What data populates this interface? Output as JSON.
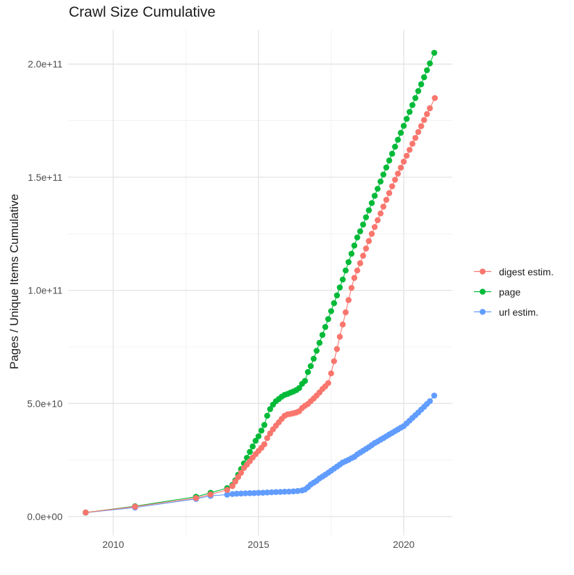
{
  "title": "Crawl Size Cumulative",
  "y_axis": {
    "title": "Pages / Unique Items Cumulative",
    "tick_labels": [
      "0.0e+00",
      "5.0e+10",
      "1.0e+11",
      "1.5e+11",
      "2.0e+11"
    ],
    "tick_values_e9": [
      0,
      50,
      100,
      150,
      200
    ]
  },
  "x_axis": {
    "tick_labels": [
      "2010",
      "2015",
      "2020"
    ],
    "tick_values": [
      2010,
      2015,
      2020
    ]
  },
  "legend": {
    "items": [
      {
        "label": "digest estim.",
        "color": "#F8766D"
      },
      {
        "label": "page",
        "color": "#00BA38"
      },
      {
        "label": "url estim.",
        "color": "#619CFF"
      }
    ]
  },
  "colors": {
    "digest": "#F8766D",
    "page": "#00BA38",
    "url": "#619CFF",
    "grid_major": "#e3e3e3",
    "grid_minor": "#f1f1f1",
    "tick_text": "#4d4d4d"
  },
  "chart_data": {
    "type": "scatter",
    "title": "Crawl Size Cumulative",
    "xlabel": "",
    "ylabel": "Pages / Unique Items Cumulative",
    "units": "y values in billions (1e9) of pages / unique items",
    "xlim": [
      2008.44,
      2021.68
    ],
    "ylim_e9": [
      -8,
      215
    ],
    "grid": "major+minor",
    "legend_position": "right",
    "marker_radius_px": 4.3,
    "series": [
      {
        "name": "url estim.",
        "color": "#619CFF",
        "points": [
          [
            2009.05,
            1.75
          ],
          [
            2010.75,
            4.0
          ],
          [
            2012.85,
            7.8
          ],
          [
            2013.35,
            9.2
          ],
          [
            2013.92,
            9.7
          ],
          [
            2014.1,
            10.0
          ],
          [
            2014.25,
            10.1
          ],
          [
            2014.4,
            10.2
          ],
          [
            2014.55,
            10.3
          ],
          [
            2014.7,
            10.35
          ],
          [
            2014.85,
            10.4
          ],
          [
            2015.0,
            10.5
          ],
          [
            2015.15,
            10.55
          ],
          [
            2015.3,
            10.65
          ],
          [
            2015.45,
            10.75
          ],
          [
            2015.6,
            10.85
          ],
          [
            2015.75,
            10.9
          ],
          [
            2015.9,
            11.0
          ],
          [
            2016.05,
            11.05
          ],
          [
            2016.2,
            11.15
          ],
          [
            2016.35,
            11.3
          ],
          [
            2016.5,
            11.6
          ],
          [
            2016.6,
            12.0
          ],
          [
            2016.7,
            13.0
          ],
          [
            2016.8,
            14.2
          ],
          [
            2016.9,
            15.0
          ],
          [
            2017.0,
            15.8
          ],
          [
            2017.1,
            16.9
          ],
          [
            2017.2,
            17.7
          ],
          [
            2017.3,
            18.5
          ],
          [
            2017.4,
            19.4
          ],
          [
            2017.5,
            20.3
          ],
          [
            2017.6,
            21.2
          ],
          [
            2017.7,
            22.1
          ],
          [
            2017.8,
            23.0
          ],
          [
            2017.9,
            23.9
          ],
          [
            2018.0,
            24.5
          ],
          [
            2018.1,
            25.1
          ],
          [
            2018.2,
            25.8
          ],
          [
            2018.3,
            26.4
          ],
          [
            2018.4,
            27.5
          ],
          [
            2018.5,
            28.3
          ],
          [
            2018.6,
            29.1
          ],
          [
            2018.7,
            29.9
          ],
          [
            2018.8,
            30.7
          ],
          [
            2018.9,
            31.6
          ],
          [
            2019.0,
            32.5
          ],
          [
            2019.1,
            33.2
          ],
          [
            2019.2,
            34.0
          ],
          [
            2019.3,
            34.7
          ],
          [
            2019.4,
            35.5
          ],
          [
            2019.5,
            36.3
          ],
          [
            2019.6,
            37.0
          ],
          [
            2019.7,
            37.8
          ],
          [
            2019.8,
            38.5
          ],
          [
            2019.9,
            39.3
          ],
          [
            2020.0,
            40.0
          ],
          [
            2020.1,
            41.2
          ],
          [
            2020.2,
            42.4
          ],
          [
            2020.3,
            43.6
          ],
          [
            2020.4,
            44.8
          ],
          [
            2020.5,
            46.0
          ],
          [
            2020.6,
            47.3
          ],
          [
            2020.7,
            48.5
          ],
          [
            2020.8,
            49.8
          ],
          [
            2020.9,
            51.0
          ],
          [
            2021.05,
            53.5
          ]
        ]
      },
      {
        "name": "page",
        "color": "#00BA38",
        "points": [
          [
            2009.05,
            1.8
          ],
          [
            2010.75,
            4.6
          ],
          [
            2012.85,
            8.8
          ],
          [
            2013.35,
            10.5
          ],
          [
            2013.92,
            12.6
          ],
          [
            2014.1,
            14.0
          ],
          [
            2014.2,
            16.0
          ],
          [
            2014.3,
            18.5
          ],
          [
            2014.4,
            21.0
          ],
          [
            2014.5,
            23.5
          ],
          [
            2014.6,
            26.0
          ],
          [
            2014.7,
            28.6
          ],
          [
            2014.8,
            31.0
          ],
          [
            2014.9,
            33.5
          ],
          [
            2015.0,
            35.5
          ],
          [
            2015.1,
            38.0
          ],
          [
            2015.2,
            40.5
          ],
          [
            2015.3,
            44.6
          ],
          [
            2015.4,
            47.5
          ],
          [
            2015.5,
            49.5
          ],
          [
            2015.6,
            51.0
          ],
          [
            2015.7,
            52.0
          ],
          [
            2015.8,
            53.0
          ],
          [
            2015.9,
            53.8
          ],
          [
            2016.0,
            54.2
          ],
          [
            2016.1,
            54.8
          ],
          [
            2016.2,
            55.3
          ],
          [
            2016.3,
            55.9
          ],
          [
            2016.4,
            56.8
          ],
          [
            2016.5,
            58.7
          ],
          [
            2016.6,
            60.0
          ],
          [
            2016.7,
            63.9
          ],
          [
            2016.8,
            66.5
          ],
          [
            2016.9,
            69.8
          ],
          [
            2017.0,
            73.3
          ],
          [
            2017.1,
            76.8
          ],
          [
            2017.2,
            80.3
          ],
          [
            2017.3,
            83.8
          ],
          [
            2017.4,
            87.3
          ],
          [
            2017.5,
            90.8
          ],
          [
            2017.6,
            94.3
          ],
          [
            2017.7,
            97.8
          ],
          [
            2017.8,
            101.3
          ],
          [
            2017.9,
            104.8
          ],
          [
            2018.0,
            108.8
          ],
          [
            2018.1,
            112.5
          ],
          [
            2018.2,
            116.2
          ],
          [
            2018.3,
            119.8
          ],
          [
            2018.4,
            123.4
          ],
          [
            2018.5,
            126.1
          ],
          [
            2018.6,
            129.1
          ],
          [
            2018.7,
            132.3
          ],
          [
            2018.8,
            135.4
          ],
          [
            2018.9,
            138.6
          ],
          [
            2019.0,
            141.8
          ],
          [
            2019.1,
            144.9
          ],
          [
            2019.2,
            148.1
          ],
          [
            2019.3,
            151.2
          ],
          [
            2019.4,
            154.3
          ],
          [
            2019.5,
            157.4
          ],
          [
            2019.6,
            160.4
          ],
          [
            2019.7,
            163.5
          ],
          [
            2019.8,
            166.6
          ],
          [
            2019.9,
            169.6
          ],
          [
            2020.0,
            172.7
          ],
          [
            2020.1,
            175.8
          ],
          [
            2020.2,
            178.9
          ],
          [
            2020.3,
            181.9
          ],
          [
            2020.4,
            185.0
          ],
          [
            2020.5,
            188.1
          ],
          [
            2020.6,
            191.1
          ],
          [
            2020.7,
            194.2
          ],
          [
            2020.8,
            197.3
          ],
          [
            2020.9,
            200.3
          ],
          [
            2021.05,
            205.0
          ]
        ]
      },
      {
        "name": "digest estim.",
        "color": "#F8766D",
        "points": [
          [
            2009.05,
            1.8
          ],
          [
            2010.75,
            4.4
          ],
          [
            2012.85,
            8.2
          ],
          [
            2013.35,
            9.8
          ],
          [
            2013.92,
            11.8
          ],
          [
            2014.1,
            13.5
          ],
          [
            2014.2,
            15.5
          ],
          [
            2014.3,
            17.5
          ],
          [
            2014.4,
            19.4
          ],
          [
            2014.5,
            21.5
          ],
          [
            2014.6,
            23.0
          ],
          [
            2014.7,
            24.5
          ],
          [
            2014.8,
            26.1
          ],
          [
            2014.9,
            27.6
          ],
          [
            2015.0,
            29.0
          ],
          [
            2015.1,
            30.4
          ],
          [
            2015.2,
            32.0
          ],
          [
            2015.3,
            34.7
          ],
          [
            2015.4,
            36.8
          ],
          [
            2015.5,
            38.6
          ],
          [
            2015.6,
            40.2
          ],
          [
            2015.7,
            41.7
          ],
          [
            2015.8,
            43.2
          ],
          [
            2015.9,
            44.6
          ],
          [
            2016.0,
            45.2
          ],
          [
            2016.1,
            45.4
          ],
          [
            2016.2,
            45.7
          ],
          [
            2016.3,
            46.0
          ],
          [
            2016.4,
            46.6
          ],
          [
            2016.5,
            48.0
          ],
          [
            2016.6,
            49.0
          ],
          [
            2016.7,
            49.8
          ],
          [
            2016.8,
            51.0
          ],
          [
            2016.9,
            52.2
          ],
          [
            2017.0,
            53.5
          ],
          [
            2017.1,
            54.9
          ],
          [
            2017.2,
            56.4
          ],
          [
            2017.3,
            57.6
          ],
          [
            2017.4,
            59.0
          ],
          [
            2017.5,
            63.3
          ],
          [
            2017.6,
            68.7
          ],
          [
            2017.7,
            74.1
          ],
          [
            2017.8,
            79.5
          ],
          [
            2017.9,
            84.9
          ],
          [
            2018.0,
            90.3
          ],
          [
            2018.1,
            95.7
          ],
          [
            2018.2,
            101.1
          ],
          [
            2018.3,
            105.5
          ],
          [
            2018.4,
            108.8
          ],
          [
            2018.5,
            112.0
          ],
          [
            2018.6,
            115.3
          ],
          [
            2018.7,
            118.5
          ],
          [
            2018.8,
            121.8
          ],
          [
            2018.9,
            125.0
          ],
          [
            2019.0,
            128.0
          ],
          [
            2019.1,
            131.0
          ],
          [
            2019.2,
            134.0
          ],
          [
            2019.3,
            137.0
          ],
          [
            2019.4,
            140.0
          ],
          [
            2019.5,
            143.0
          ],
          [
            2019.6,
            146.0
          ],
          [
            2019.7,
            148.9
          ],
          [
            2019.8,
            151.6
          ],
          [
            2019.9,
            154.2
          ],
          [
            2020.0,
            156.9
          ],
          [
            2020.1,
            159.5
          ],
          [
            2020.2,
            162.1
          ],
          [
            2020.3,
            164.8
          ],
          [
            2020.4,
            167.4
          ],
          [
            2020.5,
            170.0
          ],
          [
            2020.6,
            172.6
          ],
          [
            2020.7,
            175.3
          ],
          [
            2020.8,
            177.9
          ],
          [
            2020.9,
            180.5
          ],
          [
            2021.07,
            185.0
          ]
        ]
      }
    ]
  }
}
